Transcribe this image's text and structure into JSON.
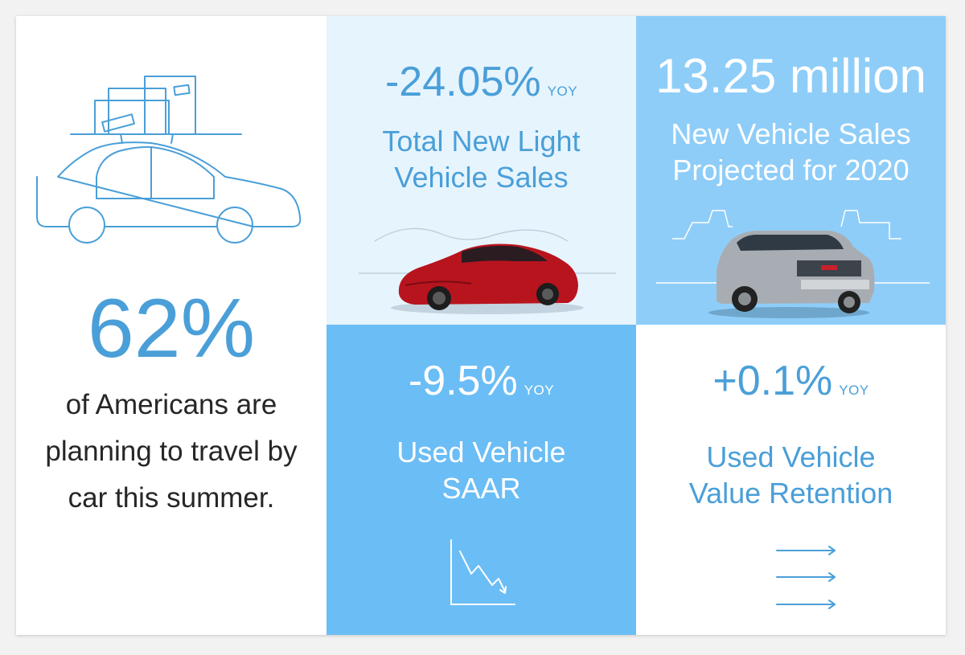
{
  "left": {
    "percent": "62%",
    "desc_lines": [
      "of Americans are",
      "planning to travel by",
      "car this summer."
    ],
    "icon": "car-with-luggage-icon",
    "accent": "#4a9fd8"
  },
  "top_middle": {
    "stat": "-24.05%",
    "unit": "YOY",
    "label_lines": [
      "Total New Light",
      "Vehicle Sales"
    ],
    "image": "red-sedan-image",
    "bg": "#e6f4fd"
  },
  "top_right": {
    "stat": "13.25 million",
    "label_lines": [
      "New Vehicle Sales",
      "Projected for 2020"
    ],
    "image": "silver-suv-image",
    "bg": "#8ecdf8"
  },
  "bottom_middle": {
    "stat": "-9.5%",
    "unit": "YOY",
    "label_lines": [
      "Used Vehicle",
      "SAAR"
    ],
    "icon": "declining-chart-icon",
    "bg": "#6bbdf5"
  },
  "bottom_right": {
    "stat": "+0.1%",
    "unit": "YOY",
    "label_lines": [
      "Used Vehicle",
      "Value Retention"
    ],
    "icon": "steady-arrows-icon",
    "bg": "#ffffff"
  }
}
